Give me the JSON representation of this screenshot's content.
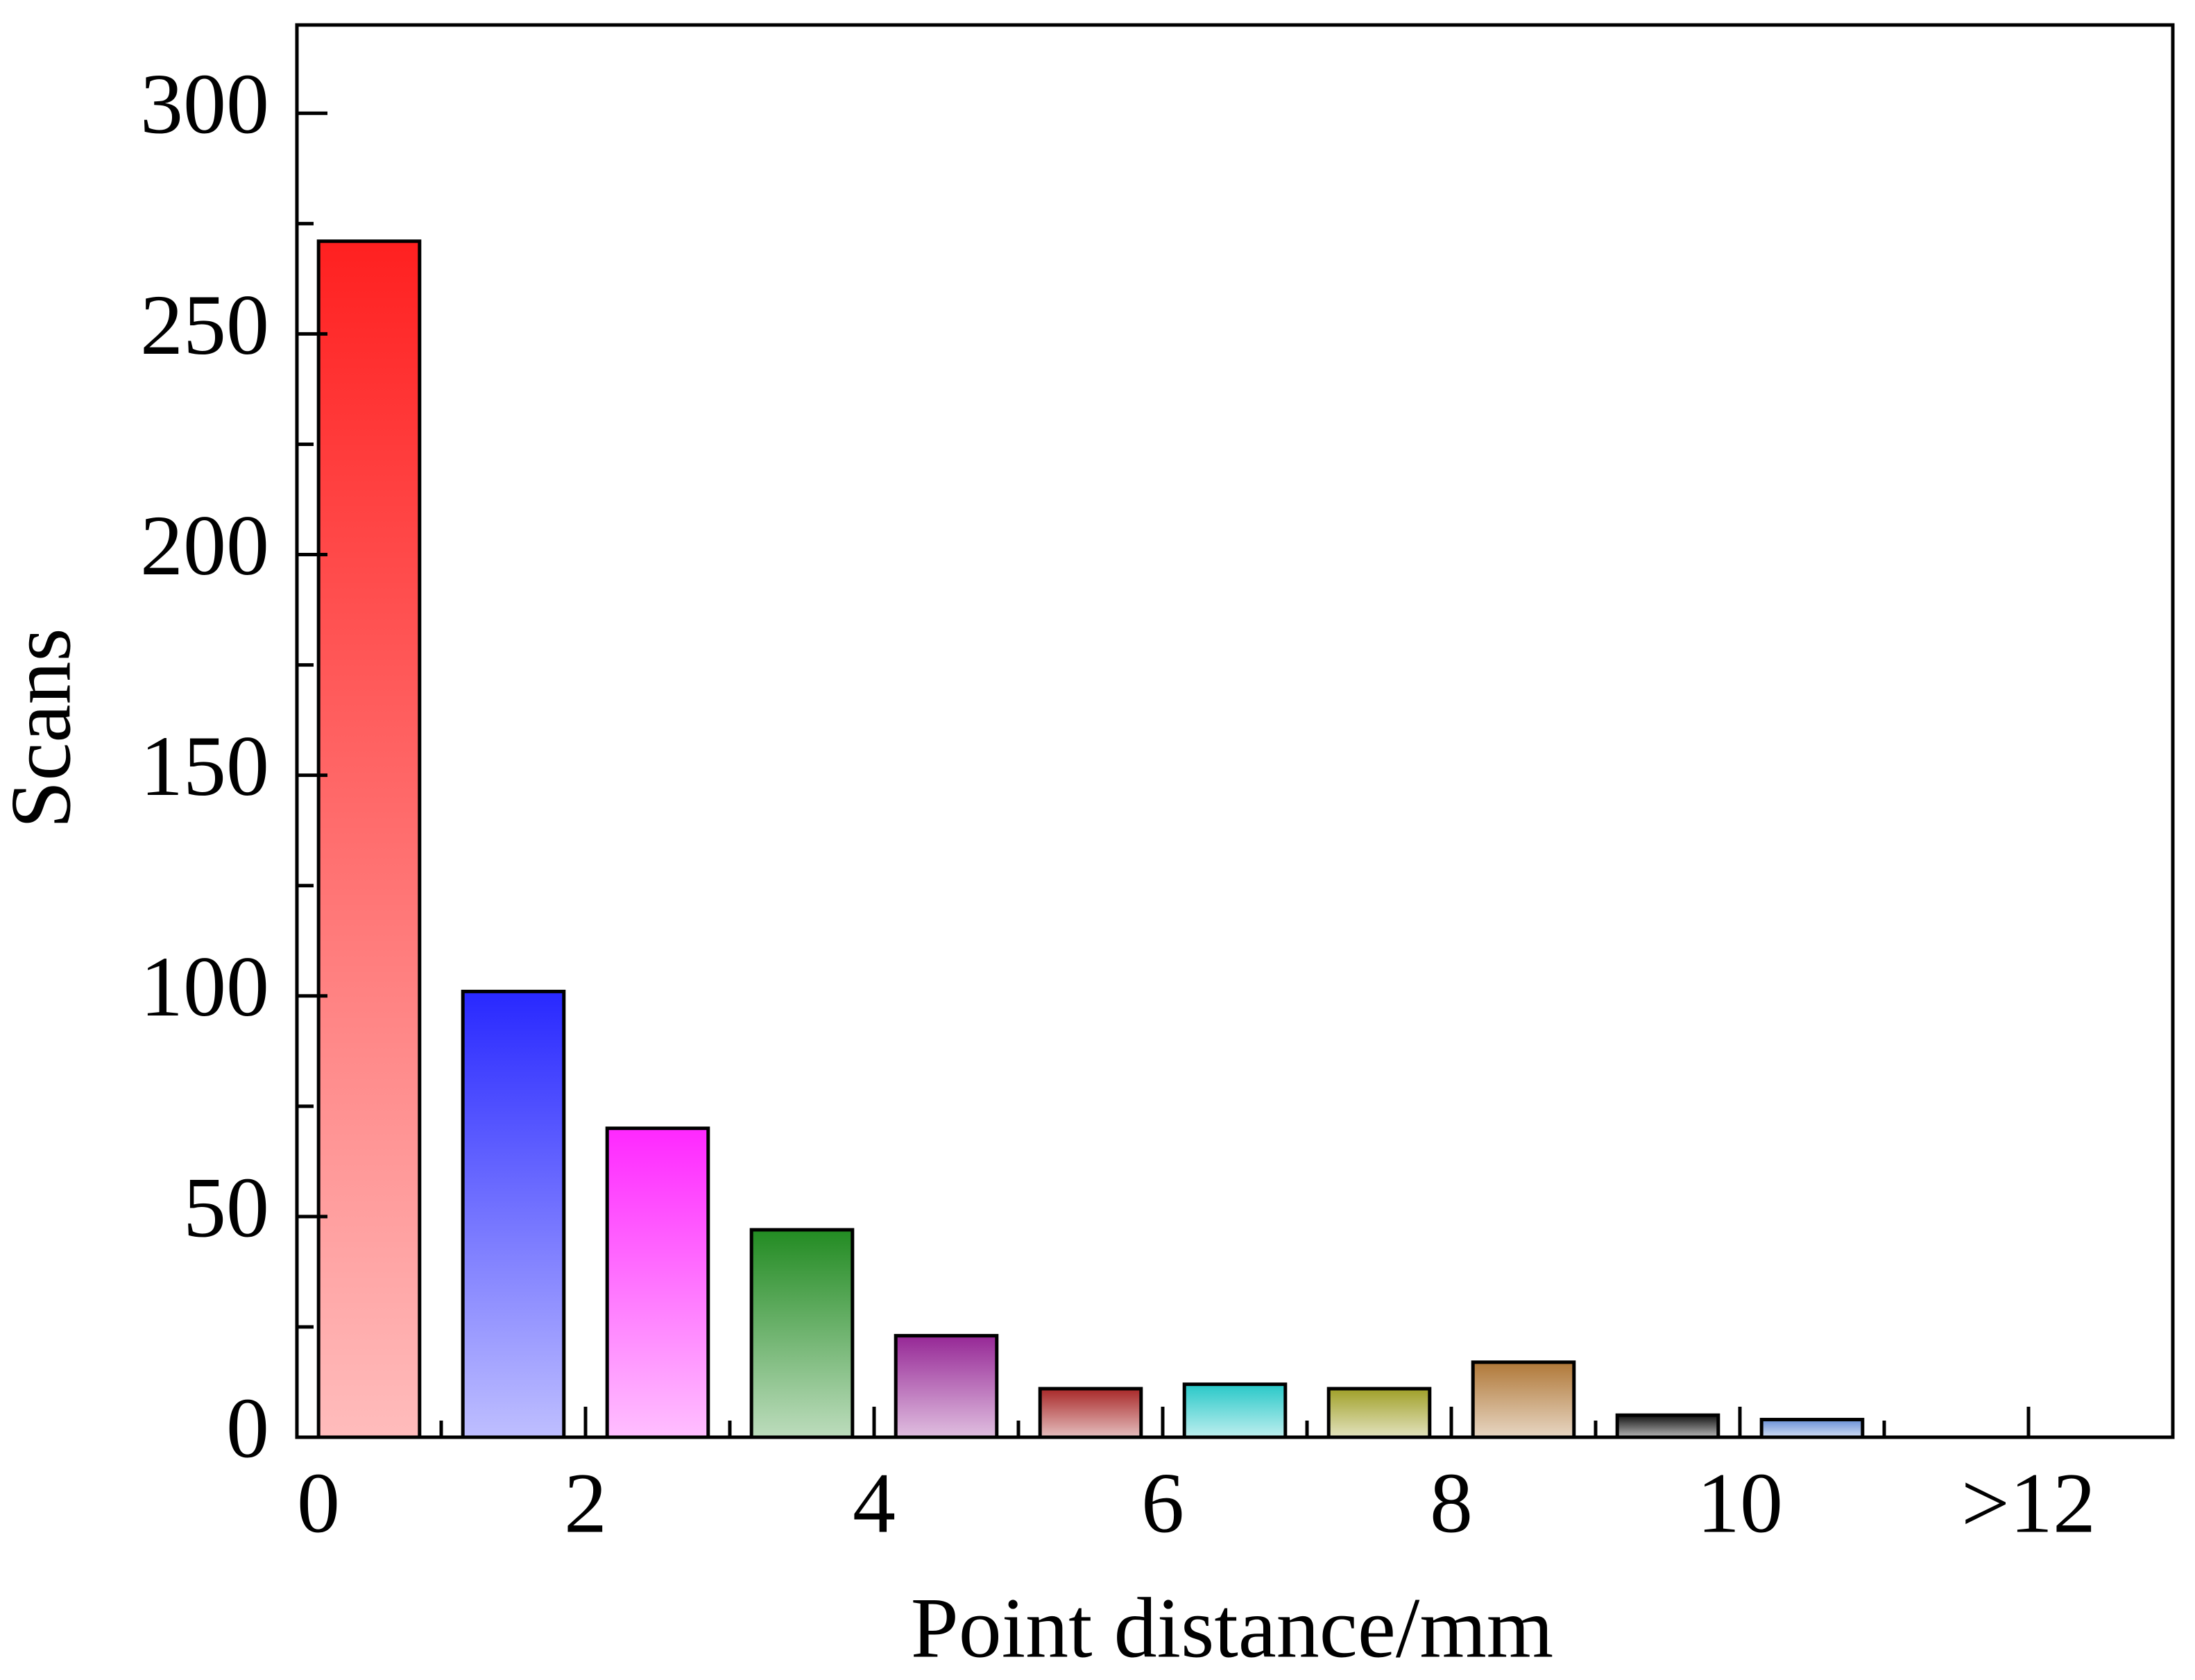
{
  "chart_data": {
    "type": "histogram",
    "x_label": "Point distance/mm",
    "y_label": "Scans",
    "bins": [
      0,
      1,
      2,
      3,
      4,
      5,
      6,
      7,
      8,
      9,
      10,
      11
    ],
    "values": [
      271,
      101,
      70,
      47,
      23,
      11,
      12,
      11,
      17,
      5,
      4
    ],
    "colors": [
      "#ff2020",
      "#2828ff",
      "#ff28ff",
      "#228b22",
      "#962896",
      "#a82828",
      "#28c8c8",
      "#a0a028",
      "#b07838",
      "#101010",
      "#6890d8"
    ],
    "xlim": [
      0,
      13
    ],
    "xticks": [
      0,
      2,
      4,
      6,
      8,
      10,
      {
        "value": 12,
        "label": ">12"
      }
    ],
    "xminorticks": [
      1,
      3,
      5,
      7,
      9,
      11
    ],
    "ylim": [
      0,
      320
    ],
    "yticks": [
      0,
      50,
      100,
      150,
      200,
      250,
      300
    ],
    "yminorticks": [
      25,
      75,
      125,
      175,
      225,
      275
    ],
    "grid": false
  }
}
